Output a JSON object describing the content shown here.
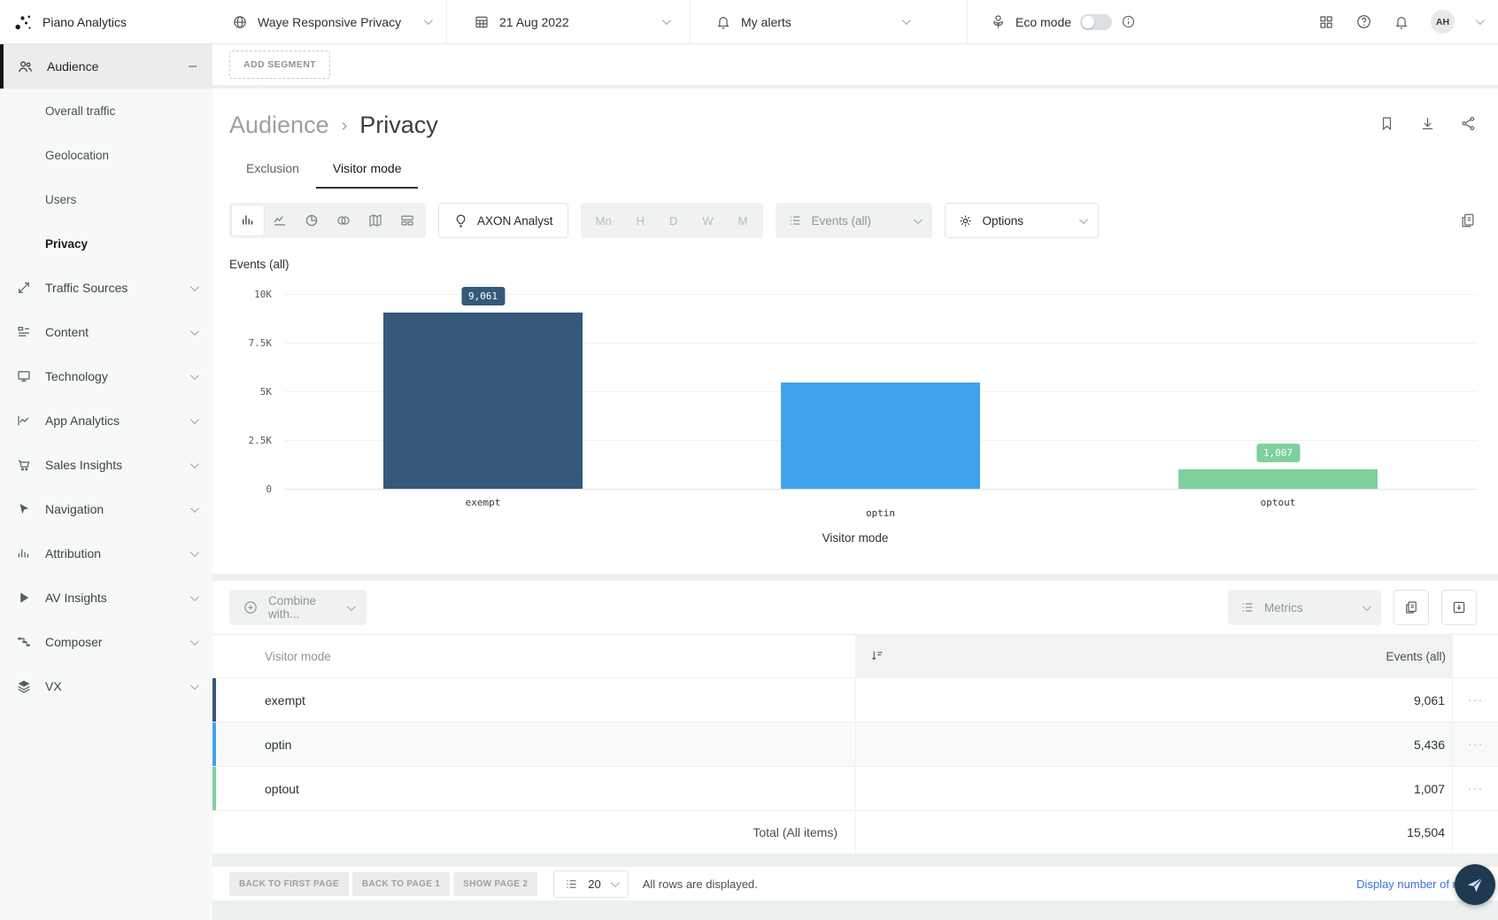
{
  "topbar": {
    "app_name": "Piano Analytics",
    "site_selector": "Waye Responsive Privacy",
    "date": "21 Aug 2022",
    "alerts": "My alerts",
    "eco_label": "Eco mode",
    "eco_mode_on": false,
    "avatar_initials": "AH"
  },
  "sidebar": {
    "audience": {
      "label": "Audience",
      "collapse_glyph": "–",
      "children": [
        "Overall traffic",
        "Geolocation",
        "Users",
        "Privacy"
      ],
      "active_child": "Privacy"
    },
    "items": [
      {
        "label": "Traffic Sources"
      },
      {
        "label": "Content"
      },
      {
        "label": "Technology"
      },
      {
        "label": "App Analytics"
      },
      {
        "label": "Sales Insights"
      },
      {
        "label": "Navigation"
      },
      {
        "label": "Attribution"
      },
      {
        "label": "AV Insights"
      },
      {
        "label": "Composer"
      },
      {
        "label": "VX"
      }
    ]
  },
  "segment_bar": {
    "add_segment": "ADD SEGMENT"
  },
  "page": {
    "breadcrumb_parent": "Audience",
    "breadcrumb_separator": "›",
    "breadcrumb_current": "Privacy",
    "tabs": [
      {
        "label": "Exclusion",
        "active": false
      },
      {
        "label": "Visitor mode",
        "active": true
      }
    ]
  },
  "toolbar": {
    "axon_label": "AXON Analyst",
    "granularity": [
      "Mn",
      "H",
      "D",
      "W",
      "M"
    ],
    "events_dropdown": "Events (all)",
    "options_dropdown": "Options"
  },
  "chart_data": {
    "type": "bar",
    "title": "Events (all)",
    "categories": [
      "exempt",
      "optin",
      "optout"
    ],
    "values": [
      9061,
      5436,
      1007
    ],
    "value_labels": [
      "9,061",
      "",
      "1,007"
    ],
    "colors": [
      "#34597a",
      "#3fa2ed",
      "#7ed09c"
    ],
    "xlabel": "Visitor mode",
    "ylabel": "Events (all)",
    "ylim": [
      0,
      10000
    ],
    "yticks": [
      "10K",
      "7.5K",
      "5K",
      "2.5K",
      "0"
    ],
    "grid": true,
    "legend": false
  },
  "table": {
    "combine_with": "Combine with...",
    "metrics": "Metrics",
    "columns": [
      "Visitor mode",
      "Events (all)"
    ],
    "row_menu_glyph": "···",
    "rows": [
      {
        "label": "exempt",
        "value": "9,061",
        "color": "#34597a"
      },
      {
        "label": "optin",
        "value": "5,436",
        "color": "#3fa2ed"
      },
      {
        "label": "optout",
        "value": "1,007",
        "color": "#7ed09c"
      }
    ],
    "total_label": "Total (All items)",
    "total_value": "15,504"
  },
  "footer": {
    "buttons": [
      "BACK TO FIRST PAGE",
      "BACK TO PAGE 1",
      "SHOW PAGE 2"
    ],
    "rows_per_page": "20",
    "status": "All rows are displayed.",
    "link": "Display number of rows"
  }
}
